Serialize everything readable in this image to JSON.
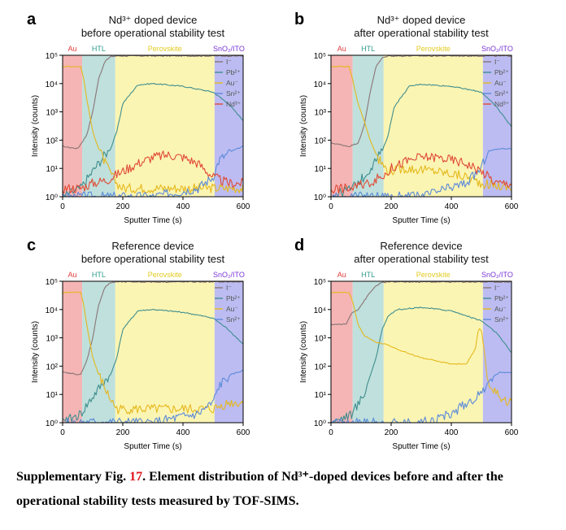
{
  "caption": {
    "prefix": "Supplementary Fig. ",
    "number": "17",
    "text": ". Element distribution of Nd³⁺-doped devices before and after the operational stability tests measured by TOF-SIMS."
  },
  "chart_data": [
    {
      "type": "line",
      "panel_label": "a",
      "title_line1": "Nd³⁺ doped device",
      "title_line2": "before operational stability test",
      "xlabel": "Sputter Time (s)",
      "ylabel": "Intensity (counts)",
      "xlim": [
        0,
        600
      ],
      "ylim": [
        1,
        100000
      ],
      "y_scale": "log",
      "x_ticks": [
        0,
        200,
        400,
        600
      ],
      "y_ticks": [
        "10⁰",
        "10¹",
        "10²",
        "10³",
        "10⁴",
        "10⁵"
      ],
      "legend_position": "top-right",
      "regions": [
        {
          "name": "Au",
          "start": 0,
          "end": 65,
          "color": "#f5b5b5",
          "label_color": "#e23b3b"
        },
        {
          "name": "HTL",
          "start": 65,
          "end": 175,
          "color": "#bfe0dc",
          "label_color": "#2f9d8c"
        },
        {
          "name": "Perovskite",
          "start": 175,
          "end": 505,
          "color": "#fbf5b3",
          "label_color": "#e2cb20"
        },
        {
          "name": "SnO₂/ITO",
          "start": 505,
          "end": 600,
          "color": "#bcbcf2",
          "label_color": "#7a35d6"
        }
      ],
      "series": [
        {
          "name": "I⁻",
          "color": "#8a7576",
          "x": [
            0,
            50,
            80,
            100,
            120,
            140,
            160,
            180,
            300,
            500,
            600
          ],
          "y": [
            60,
            50,
            150,
            1000,
            15000,
            60000,
            90000,
            95000,
            95000,
            95000,
            95000
          ]
        },
        {
          "name": "Pb²⁺",
          "color": "#3f8e8f",
          "x": [
            0,
            60,
            100,
            140,
            160,
            180,
            200,
            250,
            300,
            400,
            500,
            550,
            600
          ],
          "y": [
            1,
            2,
            8,
            30,
            50,
            200,
            2000,
            9000,
            10000,
            8000,
            5000,
            2000,
            500
          ]
        },
        {
          "name": "Au⁻",
          "color": "#e5b81e",
          "x": [
            0,
            60,
            70,
            80,
            100,
            120,
            150,
            180,
            200,
            300,
            400,
            500,
            600
          ],
          "y": [
            40000,
            40000,
            15000,
            3000,
            200,
            50,
            10,
            3,
            2,
            2,
            2,
            2,
            2
          ]
        },
        {
          "name": "Sn²⁺",
          "color": "#5b8ad9",
          "x": [
            0,
            300,
            450,
            500,
            520,
            560,
            600
          ],
          "y": [
            1,
            1,
            2,
            5,
            20,
            40,
            60
          ]
        },
        {
          "name": "Nd³⁺",
          "color": "#e04a35",
          "x": [
            0,
            60,
            100,
            150,
            200,
            250,
            300,
            350,
            400,
            450,
            500,
            550,
            600
          ],
          "y": [
            2,
            2,
            3,
            4,
            8,
            15,
            25,
            30,
            25,
            15,
            5,
            3,
            3
          ]
        }
      ]
    },
    {
      "type": "line",
      "panel_label": "b",
      "title_line1": "Nd³⁺ doped device",
      "title_line2": "after operational stability test",
      "xlabel": "Sputter Time (s)",
      "ylabel": "Intensity (counts)",
      "xlim": [
        0,
        600
      ],
      "ylim": [
        1,
        100000
      ],
      "y_scale": "log",
      "x_ticks": [
        0,
        200,
        400,
        600
      ],
      "y_ticks": [
        "10⁰",
        "10¹",
        "10²",
        "10³",
        "10⁴",
        "10⁵"
      ],
      "legend_position": "top-right",
      "regions": [
        {
          "name": "Au",
          "start": 0,
          "end": 72,
          "color": "#f5b5b5",
          "label_color": "#e23b3b"
        },
        {
          "name": "HTL",
          "start": 72,
          "end": 175,
          "color": "#bfe0dc",
          "label_color": "#2f9d8c"
        },
        {
          "name": "Perovskite",
          "start": 175,
          "end": 505,
          "color": "#fbf5b3",
          "label_color": "#e2cb20"
        },
        {
          "name": "SnO₂/ITO",
          "start": 505,
          "end": 600,
          "color": "#bcbcf2",
          "label_color": "#7a35d6"
        }
      ],
      "series": [
        {
          "name": "I⁻",
          "color": "#8a7576",
          "x": [
            0,
            60,
            90,
            110,
            130,
            150,
            170,
            190,
            300,
            500,
            600
          ],
          "y": [
            80,
            60,
            80,
            300,
            5000,
            40000,
            80000,
            95000,
            95000,
            95000,
            95000
          ]
        },
        {
          "name": "Pb²⁺",
          "color": "#3f8e8f",
          "x": [
            0,
            70,
            110,
            150,
            170,
            190,
            210,
            260,
            300,
            400,
            500,
            550,
            600
          ],
          "y": [
            1,
            2,
            5,
            20,
            40,
            150,
            1500,
            8000,
            9500,
            8000,
            5000,
            1500,
            300
          ]
        },
        {
          "name": "Au⁻",
          "color": "#e5b81e",
          "x": [
            0,
            60,
            75,
            90,
            110,
            130,
            160,
            190,
            250,
            350,
            450,
            500,
            600
          ],
          "y": [
            40000,
            40000,
            10000,
            2000,
            500,
            100,
            20,
            8,
            10,
            8,
            5,
            3,
            2
          ]
        },
        {
          "name": "Sn²⁺",
          "color": "#5b8ad9",
          "x": [
            0,
            300,
            450,
            500,
            520,
            560,
            600
          ],
          "y": [
            1,
            1,
            3,
            10,
            40,
            50,
            50
          ]
        },
        {
          "name": "Nd³⁺",
          "color": "#e04a35",
          "x": [
            0,
            70,
            120,
            170,
            200,
            250,
            300,
            350,
            400,
            450,
            500,
            550,
            600
          ],
          "y": [
            2,
            2,
            3,
            5,
            10,
            18,
            25,
            25,
            20,
            15,
            8,
            3,
            3
          ]
        }
      ]
    },
    {
      "type": "line",
      "panel_label": "c",
      "title_line1": "Reference device",
      "title_line2": "before operational stability test",
      "xlabel": "Sputter Time (s)",
      "ylabel": "Intensity (counts)",
      "xlim": [
        0,
        600
      ],
      "ylim": [
        1,
        100000
      ],
      "y_scale": "log",
      "x_ticks": [
        0,
        200,
        400,
        600
      ],
      "y_ticks": [
        "10⁰",
        "10¹",
        "10²",
        "10³",
        "10⁴",
        "10⁵"
      ],
      "legend_position": "top-right",
      "regions": [
        {
          "name": "Au",
          "start": 0,
          "end": 65,
          "color": "#f5b5b5",
          "label_color": "#e23b3b"
        },
        {
          "name": "HTL",
          "start": 65,
          "end": 175,
          "color": "#bfe0dc",
          "label_color": "#2f9d8c"
        },
        {
          "name": "Perovskite",
          "start": 175,
          "end": 505,
          "color": "#fbf5b3",
          "label_color": "#e2cb20"
        },
        {
          "name": "SnO₂/ITO",
          "start": 505,
          "end": 600,
          "color": "#bcbcf2",
          "label_color": "#7a35d6"
        }
      ],
      "series": [
        {
          "name": "I⁻",
          "color": "#8a7576",
          "x": [
            0,
            60,
            80,
            100,
            120,
            140,
            160,
            180,
            300,
            500,
            600
          ],
          "y": [
            60,
            50,
            150,
            1000,
            15000,
            60000,
            90000,
            95000,
            95000,
            95000,
            95000
          ]
        },
        {
          "name": "Pb²⁺",
          "color": "#3f8e8f",
          "x": [
            0,
            60,
            100,
            140,
            160,
            180,
            200,
            250,
            300,
            400,
            500,
            550,
            600
          ],
          "y": [
            1,
            2,
            8,
            30,
            50,
            200,
            2000,
            9000,
            10000,
            8000,
            5000,
            2000,
            600
          ]
        },
        {
          "name": "Au⁻",
          "color": "#e5b81e",
          "x": [
            0,
            60,
            70,
            80,
            100,
            120,
            150,
            180,
            200,
            300,
            400,
            500,
            550,
            600
          ],
          "y": [
            40000,
            40000,
            15000,
            3000,
            200,
            50,
            10,
            3,
            3,
            3,
            3,
            3,
            5,
            5
          ]
        },
        {
          "name": "Sn²⁺",
          "color": "#5b8ad9",
          "x": [
            0,
            300,
            450,
            500,
            520,
            560,
            600
          ],
          "y": [
            1,
            1,
            2,
            5,
            20,
            50,
            70
          ]
        }
      ]
    },
    {
      "type": "line",
      "panel_label": "d",
      "title_line1": "Reference device",
      "title_line2": "after operational stability test",
      "xlabel": "Sputter Time (s)",
      "ylabel": "Intensity (counts)",
      "xlim": [
        0,
        600
      ],
      "ylim": [
        1,
        100000
      ],
      "y_scale": "log",
      "x_ticks": [
        0,
        200,
        400,
        600
      ],
      "y_ticks": [
        "10⁰",
        "10¹",
        "10²",
        "10³",
        "10⁴",
        "10⁵"
      ],
      "legend_position": "top-right",
      "regions": [
        {
          "name": "Au",
          "start": 0,
          "end": 72,
          "color": "#f5b5b5",
          "label_color": "#e23b3b"
        },
        {
          "name": "HTL",
          "start": 72,
          "end": 175,
          "color": "#bfe0dc",
          "label_color": "#2f9d8c"
        },
        {
          "name": "Perovskite",
          "start": 175,
          "end": 505,
          "color": "#fbf5b3",
          "label_color": "#e2cb20"
        },
        {
          "name": "SnO₂/ITO",
          "start": 505,
          "end": 600,
          "color": "#bcbcf2",
          "label_color": "#7a35d6"
        }
      ],
      "series": [
        {
          "name": "I⁻",
          "color": "#8a7576",
          "x": [
            0,
            50,
            70,
            90,
            110,
            130,
            150,
            170,
            190,
            300,
            500,
            600
          ],
          "y": [
            3000,
            3000,
            8000,
            10000,
            20000,
            40000,
            70000,
            90000,
            95000,
            95000,
            95000,
            95000
          ]
        },
        {
          "name": "Pb²⁺",
          "color": "#3f8e8f",
          "x": [
            0,
            70,
            110,
            150,
            170,
            190,
            220,
            260,
            300,
            400,
            500,
            550,
            600
          ],
          "y": [
            1,
            2,
            10,
            200,
            2000,
            6000,
            10000,
            11000,
            12000,
            9000,
            4000,
            1500,
            300
          ]
        },
        {
          "name": "Au⁻",
          "color": "#e5b81e",
          "x": [
            0,
            60,
            75,
            90,
            110,
            130,
            150,
            180,
            200,
            250,
            300,
            350,
            400,
            450,
            480,
            490,
            500,
            510,
            520,
            550,
            600
          ],
          "y": [
            40000,
            40000,
            15000,
            3000,
            1200,
            900,
            700,
            600,
            500,
            300,
            200,
            150,
            120,
            120,
            400,
            2000,
            2000,
            300,
            30,
            10,
            5
          ]
        },
        {
          "name": "Sn²⁺",
          "color": "#5b8ad9",
          "x": [
            0,
            300,
            400,
            450,
            500,
            520,
            560,
            600
          ],
          "y": [
            1,
            1,
            2,
            5,
            10,
            30,
            60,
            60
          ]
        }
      ]
    }
  ]
}
